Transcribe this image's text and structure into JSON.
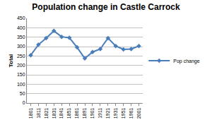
{
  "chart_data": {
    "type": "line",
    "title": "Population change in Castle Carrock",
    "y_label": "Total",
    "categories": [
      "1801",
      "1811",
      "1821",
      "1831",
      "1841",
      "1851",
      "1861",
      "1891",
      "1901",
      "1911",
      "1921",
      "1931",
      "1951",
      "1961",
      "2001"
    ],
    "series": [
      {
        "name": "Pop change",
        "color": "#4a7ebb",
        "marker": "diamond",
        "values": [
          254,
          310,
          345,
          383,
          352,
          347,
          296,
          237,
          271,
          287,
          345,
          303,
          285,
          287,
          303
        ]
      }
    ],
    "ylim": [
      0,
      450
    ],
    "yticks": [
      0,
      50,
      100,
      150,
      200,
      250,
      300,
      350,
      400,
      450
    ],
    "grid": true,
    "legend": "right"
  }
}
